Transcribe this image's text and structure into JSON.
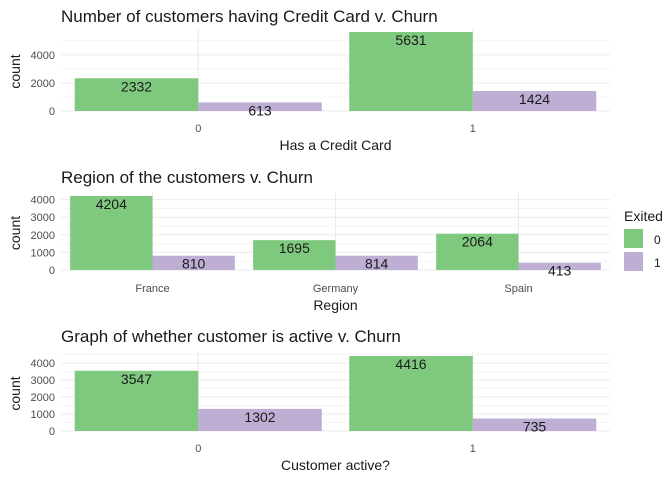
{
  "chart_data": [
    {
      "type": "bar",
      "title": "Number of customers having Credit Card v. Churn",
      "xlabel": "Has a Credit Card",
      "ylabel": "count",
      "categories": [
        "0",
        "1"
      ],
      "ylim": [
        0,
        5631
      ],
      "yticks": [
        0,
        2000,
        4000
      ],
      "series": [
        {
          "name": "0",
          "values": [
            2332,
            5631
          ]
        },
        {
          "name": "1",
          "values": [
            613,
            1424
          ]
        }
      ]
    },
    {
      "type": "bar",
      "title": "Region of the customers v. Churn",
      "xlabel": "Region",
      "ylabel": "count",
      "categories": [
        "France",
        "Germany",
        "Spain"
      ],
      "ylim": [
        0,
        4204
      ],
      "yticks": [
        0,
        1000,
        2000,
        3000,
        4000
      ],
      "series": [
        {
          "name": "0",
          "values": [
            4204,
            1695,
            2064
          ]
        },
        {
          "name": "1",
          "values": [
            810,
            814,
            413
          ]
        }
      ]
    },
    {
      "type": "bar",
      "title": "Graph of whether customer is active v. Churn",
      "xlabel": "Customer active?",
      "ylabel": "count",
      "categories": [
        "0",
        "1"
      ],
      "ylim": [
        0,
        4416
      ],
      "yticks": [
        0,
        1000,
        2000,
        3000,
        4000
      ],
      "series": [
        {
          "name": "0",
          "values": [
            3547,
            4416
          ]
        },
        {
          "name": "1",
          "values": [
            1302,
            735
          ]
        }
      ]
    }
  ],
  "legend": {
    "title": "Exited",
    "placement": "right",
    "items": [
      {
        "label": "0",
        "color": "#7fc97f"
      },
      {
        "label": "1",
        "color": "#beaed4"
      }
    ]
  },
  "colors": {
    "series_0": "#7fc97f",
    "series_1": "#beaed4",
    "grid": "#ebebeb",
    "text": "#1a1a1a",
    "tick": "#4d4d4d"
  }
}
